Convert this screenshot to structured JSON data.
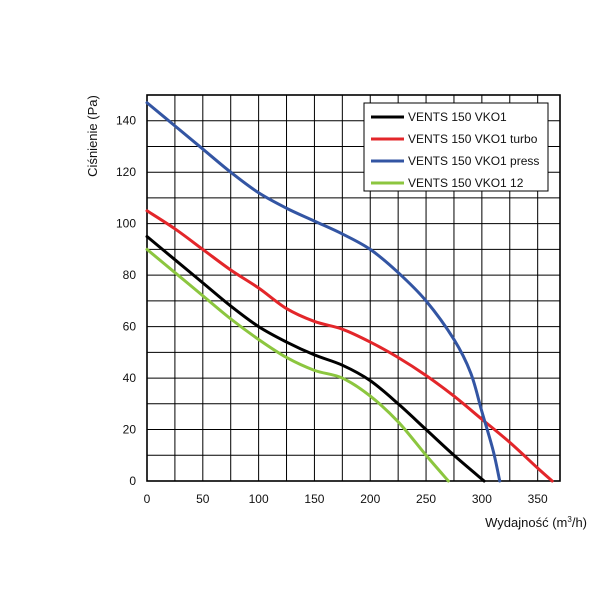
{
  "chart_data": {
    "type": "line",
    "title": "",
    "xlabel": "Wydajność (m",
    "xlabel_sup": "3",
    "xlabel_tail": "/h)",
    "ylabel": "Ciśnienie (Pa)",
    "xlim": [
      0,
      370
    ],
    "ylim": [
      0,
      150
    ],
    "grid": true,
    "legend_position": "top-right",
    "x_ticks": [
      0,
      50,
      100,
      150,
      200,
      250,
      300,
      350
    ],
    "y_ticks": [
      0,
      20,
      40,
      60,
      80,
      100,
      120,
      140
    ],
    "x_gridlines": [
      0,
      25,
      50,
      75,
      100,
      125,
      150,
      175,
      200,
      225,
      250,
      275,
      300,
      325,
      350,
      370
    ],
    "y_gridlines": [
      0,
      10,
      20,
      30,
      40,
      50,
      60,
      70,
      80,
      90,
      100,
      110,
      120,
      130,
      140,
      150
    ],
    "series": [
      {
        "name": "VENTS 150 VKO1",
        "color": "#000000",
        "x": [
          0,
          25,
          50,
          75,
          100,
          125,
          150,
          175,
          200,
          225,
          250,
          275,
          302
        ],
        "y": [
          95,
          86,
          77,
          68,
          60,
          54,
          49,
          45,
          39,
          30,
          20,
          10,
          0
        ]
      },
      {
        "name": "VENTS 150 VKO1 turbo",
        "color": "#e3262a",
        "x": [
          0,
          25,
          50,
          75,
          100,
          125,
          150,
          175,
          200,
          225,
          250,
          275,
          300,
          325,
          350,
          363
        ],
        "y": [
          105,
          98,
          90,
          82,
          75,
          67,
          62,
          59,
          54,
          48,
          41,
          33,
          24,
          15,
          5,
          0
        ]
      },
      {
        "name": "VENTS 150 VKO1 press",
        "color": "#3355a3",
        "x": [
          0,
          25,
          50,
          75,
          100,
          125,
          150,
          175,
          200,
          225,
          250,
          275,
          290,
          300,
          310,
          316
        ],
        "y": [
          147,
          138,
          129,
          120,
          112,
          106,
          101,
          96,
          90,
          81,
          70,
          55,
          42,
          27,
          12,
          0
        ]
      },
      {
        "name": "VENTS 150 VKO1 12",
        "color": "#8cc63f",
        "x": [
          0,
          25,
          50,
          75,
          100,
          125,
          150,
          175,
          200,
          225,
          250,
          270
        ],
        "y": [
          90,
          81,
          72,
          63,
          55,
          48,
          43,
          40,
          33,
          23,
          10,
          0
        ]
      }
    ]
  }
}
